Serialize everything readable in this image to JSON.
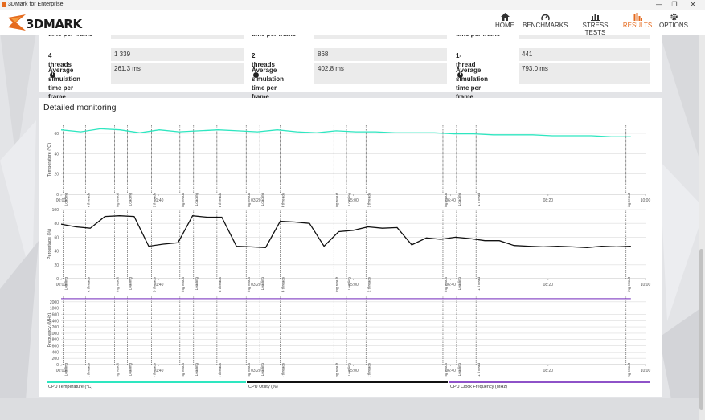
{
  "window": {
    "title": "3DMark for Enterprise",
    "controls": [
      "—",
      "❐",
      "✕"
    ]
  },
  "app": {
    "logo_text": "3DMARK",
    "brand_color": "#e56b1f"
  },
  "nav": [
    {
      "label": "HOME",
      "icon": "home-icon",
      "active": false
    },
    {
      "label": "BENCHMARKS",
      "icon": "benchmarks-icon",
      "active": false
    },
    {
      "label": "STRESS TESTS",
      "icon": "stress-tests-icon",
      "active": false
    },
    {
      "label": "RESULTS",
      "icon": "results-icon",
      "active": true
    },
    {
      "label": "OPTIONS",
      "icon": "gear-icon",
      "active": false
    }
  ],
  "cpu_profile": {
    "top_partial_label": "time per frame",
    "columns": [
      {
        "threads_label": "4 threads",
        "threads_value": "1 339",
        "sim_label_1": "Average simulation",
        "sim_label_2": "time per frame",
        "sim_value": "261.3 ms"
      },
      {
        "threads_label": "2 threads",
        "threads_value": "868",
        "sim_label_1": "Average simulation",
        "sim_label_2": "time per frame",
        "sim_value": "402.8 ms"
      },
      {
        "threads_label": "1-thread",
        "threads_value": "441",
        "sim_label_1": "Average simulation",
        "sim_label_2": "time per frame",
        "sim_value": "793.0 ms"
      }
    ]
  },
  "monitoring": {
    "title": "Detailed monitoring",
    "legend": [
      {
        "label": "CPU Temperature (°C)",
        "color": "#2ee6c0"
      },
      {
        "label": "CPU Utility (%)",
        "color": "#111111"
      },
      {
        "label": "CPU Clock Frequency (MHz)",
        "color": "#8e52c8"
      }
    ]
  },
  "chart_data": [
    {
      "type": "line",
      "ylabel": "Temperature (°C)",
      "x": [
        "00:00",
        "00:20",
        "00:40",
        "01:00",
        "01:20",
        "01:40",
        "02:00",
        "02:20",
        "02:40",
        "03:00",
        "03:20",
        "03:40",
        "04:00",
        "04:20",
        "04:40",
        "05:00",
        "05:20",
        "05:40",
        "06:00",
        "06:20",
        "06:40",
        "07:00",
        "07:20",
        "07:40",
        "08:00",
        "08:20",
        "08:40",
        "09:00",
        "09:20",
        "09:40"
      ],
      "xlim": [
        "00:00",
        "10:00"
      ],
      "ytick_labels": [
        "60",
        "40",
        "20",
        "0"
      ],
      "ylim": [
        0,
        70
      ],
      "tick_labels_x": [
        "00:00",
        "01:40",
        "03:20",
        "05:00",
        "06:40",
        "08:20",
        "10:00"
      ],
      "series": [
        {
          "color": "#2ee6c0",
          "values": [
            64,
            62,
            65,
            64,
            61,
            64,
            62,
            63,
            64,
            63,
            62,
            64,
            62,
            61,
            63,
            62,
            62,
            61,
            61,
            61,
            60,
            60,
            59,
            59,
            59,
            58,
            58,
            58,
            57,
            57
          ]
        }
      ],
      "markers": [
        {
          "time": "00:02",
          "label": "Loading"
        },
        {
          "time": "00:25",
          "label": "Max threads"
        },
        {
          "time": "00:55",
          "label": "Saving result"
        },
        {
          "time": "01:08",
          "label": "Loading"
        },
        {
          "time": "01:33",
          "label": "16 threads"
        },
        {
          "time": "02:02",
          "label": "Saving result"
        },
        {
          "time": "02:16",
          "label": "Loading"
        },
        {
          "time": "02:40",
          "label": "8 threads"
        },
        {
          "time": "03:10",
          "label": "Saving result"
        },
        {
          "time": "03:24",
          "label": "Loading"
        },
        {
          "time": "03:45",
          "label": "4 threads"
        },
        {
          "time": "04:40",
          "label": "Saving result"
        },
        {
          "time": "04:53",
          "label": "Loading"
        },
        {
          "time": "05:13",
          "label": "2 threads"
        },
        {
          "time": "06:32",
          "label": "Saving result"
        },
        {
          "time": "06:46",
          "label": "Loading"
        },
        {
          "time": "07:06",
          "label": "1 thread"
        },
        {
          "time": "09:40",
          "label": "Saving result"
        }
      ]
    },
    {
      "type": "line",
      "ylabel": "Percentage (%)",
      "xlim": [
        "00:00",
        "10:00"
      ],
      "ytick_labels": [
        "100",
        "80",
        "60",
        "40",
        "20",
        "0"
      ],
      "ylim": [
        0,
        100
      ],
      "tick_labels_x": [
        "00:00",
        "01:40",
        "03:20",
        "05:00",
        "06:40",
        "08:20",
        "10:00"
      ],
      "series": [
        {
          "color": "#111111",
          "values": [
            79,
            75,
            73,
            90,
            91,
            90,
            47,
            50,
            52,
            91,
            89,
            89,
            47,
            46,
            45,
            83,
            82,
            80,
            47,
            68,
            70,
            75,
            73,
            74,
            49,
            59,
            57,
            60,
            58,
            55,
            55,
            48,
            47,
            46,
            47,
            46,
            45,
            47,
            46,
            47
          ]
        }
      ],
      "markers": "same as temperature chart"
    },
    {
      "type": "line",
      "ylabel": "Frequency (MHz)",
      "xlim": [
        "00:00",
        "10:00"
      ],
      "ytick_labels": [
        "2000",
        "1800",
        "1600",
        "1400",
        "1200",
        "1000",
        "800",
        "600",
        "400",
        "200",
        "0"
      ],
      "ylim": [
        0,
        2200
      ],
      "tick_labels_x": [
        "00:00",
        "01:40",
        "03:20",
        "05:00",
        "06:40",
        "08:20",
        "10:00"
      ],
      "series": [
        {
          "color": "#8e52c8",
          "values": [
            2100,
            2100,
            2100,
            2100,
            2100,
            2100,
            2100,
            2100,
            2100,
            2100,
            2100,
            2100,
            2100,
            2100,
            2100,
            2100,
            2100,
            2100,
            2100,
            2100
          ]
        }
      ],
      "markers": "same as temperature chart"
    }
  ]
}
